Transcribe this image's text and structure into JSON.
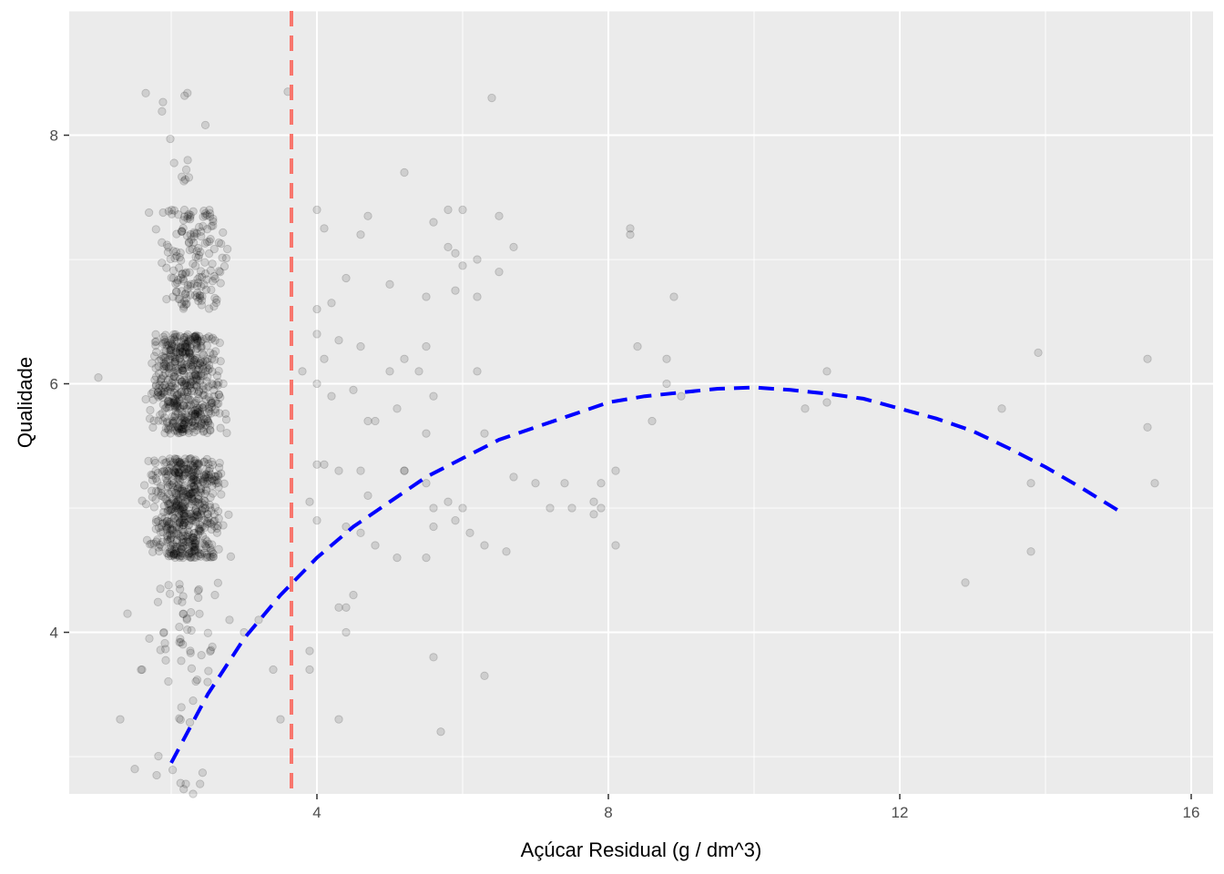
{
  "chart_data": {
    "type": "scatter",
    "title": "",
    "xlabel": "Açúcar Residual (g / dm^3)",
    "ylabel": "Qualidade",
    "xlim": [
      0.6,
      16.3
    ],
    "ylim": [
      2.7,
      9.0
    ],
    "x_ticks": [
      4,
      8,
      12,
      16
    ],
    "x_tick_labels": [
      "4",
      "8",
      "12",
      "16"
    ],
    "y_ticks": [
      4,
      6,
      8
    ],
    "y_tick_labels": [
      "4",
      "6",
      "8"
    ],
    "grid": true,
    "legend": "none",
    "colors": {
      "panel_background": "#ebebeb",
      "grid_line": "#ffffff",
      "points": "#000000",
      "vline": "#f8766d",
      "curve": "#0000ff"
    },
    "points_jitter": 0.4,
    "points_alpha": 0.12,
    "points_dense": [
      {
        "quality": 3,
        "center": 2.1,
        "spread": 0.4,
        "n": 10
      },
      {
        "quality": 4,
        "center": 2.2,
        "spread": 0.5,
        "n": 45
      },
      {
        "quality": 5,
        "center": 2.2,
        "spread": 0.42,
        "n": 560
      },
      {
        "quality": 6,
        "center": 2.2,
        "spread": 0.42,
        "n": 520
      },
      {
        "quality": 7,
        "center": 2.3,
        "spread": 0.45,
        "n": 160
      },
      {
        "quality": 8,
        "center": 2.1,
        "spread": 0.35,
        "n": 14
      }
    ],
    "points_sparse": [
      [
        1.0,
        6.05
      ],
      [
        1.3,
        3.3
      ],
      [
        1.4,
        4.15
      ],
      [
        1.5,
        2.9
      ],
      [
        1.6,
        3.7
      ],
      [
        1.7,
        3.95
      ],
      [
        1.8,
        2.85
      ],
      [
        1.9,
        4.0
      ],
      [
        2.2,
        2.78
      ],
      [
        2.3,
        3.45
      ],
      [
        2.3,
        2.7
      ],
      [
        2.5,
        3.6
      ],
      [
        2.6,
        4.3
      ],
      [
        2.8,
        4.1
      ],
      [
        3.0,
        4.0
      ],
      [
        3.2,
        4.1
      ],
      [
        3.4,
        3.7
      ],
      [
        3.5,
        3.3
      ],
      [
        3.9,
        3.7
      ],
      [
        3.9,
        3.85
      ],
      [
        4.3,
        3.3
      ],
      [
        4.3,
        4.2
      ],
      [
        4.4,
        4.2
      ],
      [
        4.4,
        4.0
      ],
      [
        4.5,
        4.3
      ],
      [
        5.7,
        3.2
      ],
      [
        5.6,
        3.8
      ],
      [
        6.3,
        3.65
      ],
      [
        4.0,
        7.4
      ],
      [
        4.1,
        7.25
      ],
      [
        4.6,
        7.2
      ],
      [
        4.7,
        7.35
      ],
      [
        5.2,
        7.7
      ],
      [
        5.6,
        7.3
      ],
      [
        5.8,
        7.4
      ],
      [
        6.0,
        7.4
      ],
      [
        6.5,
        7.35
      ],
      [
        6.7,
        7.1
      ],
      [
        6.4,
        8.3
      ],
      [
        3.6,
        8.35
      ],
      [
        4.0,
        6.6
      ],
      [
        4.2,
        6.65
      ],
      [
        4.4,
        6.85
      ],
      [
        5.0,
        6.8
      ],
      [
        5.5,
        6.7
      ],
      [
        5.9,
        6.75
      ],
      [
        6.2,
        6.7
      ],
      [
        6.5,
        6.9
      ],
      [
        6.2,
        7.0
      ],
      [
        6.0,
        6.95
      ],
      [
        5.8,
        7.1
      ],
      [
        5.9,
        7.05
      ],
      [
        3.8,
        6.1
      ],
      [
        4.0,
        6.0
      ],
      [
        4.0,
        6.4
      ],
      [
        4.1,
        6.2
      ],
      [
        4.2,
        5.9
      ],
      [
        4.3,
        6.35
      ],
      [
        4.5,
        5.95
      ],
      [
        4.6,
        6.3
      ],
      [
        4.7,
        5.7
      ],
      [
        5.2,
        6.2
      ],
      [
        5.4,
        6.1
      ],
      [
        5.5,
        6.3
      ],
      [
        5.6,
        5.9
      ],
      [
        6.2,
        6.1
      ],
      [
        5.1,
        5.8
      ],
      [
        4.8,
        5.7
      ],
      [
        5.0,
        6.1
      ],
      [
        6.3,
        5.6
      ],
      [
        4.0,
        5.35
      ],
      [
        4.1,
        5.35
      ],
      [
        4.3,
        5.3
      ],
      [
        4.6,
        5.3
      ],
      [
        4.7,
        5.1
      ],
      [
        5.2,
        5.3
      ],
      [
        5.5,
        5.2
      ],
      [
        5.6,
        5.0
      ],
      [
        5.8,
        5.05
      ],
      [
        6.0,
        5.0
      ],
      [
        6.1,
        4.8
      ],
      [
        6.3,
        4.7
      ],
      [
        6.6,
        4.65
      ],
      [
        6.7,
        5.25
      ],
      [
        7.0,
        5.2
      ],
      [
        7.2,
        5.0
      ],
      [
        7.5,
        5.0
      ],
      [
        7.8,
        5.05
      ],
      [
        7.8,
        4.95
      ],
      [
        7.9,
        5.0
      ],
      [
        7.9,
        5.2
      ],
      [
        8.1,
        5.3
      ],
      [
        8.1,
        4.7
      ],
      [
        7.4,
        5.2
      ],
      [
        4.4,
        4.85
      ],
      [
        4.6,
        4.8
      ],
      [
        4.8,
        4.7
      ],
      [
        5.1,
        4.6
      ],
      [
        5.6,
        4.85
      ],
      [
        5.9,
        4.9
      ],
      [
        5.2,
        5.3
      ],
      [
        5.5,
        5.6
      ],
      [
        5.5,
        4.6
      ],
      [
        4.0,
        4.9
      ],
      [
        3.9,
        5.05
      ],
      [
        8.3,
        7.25
      ],
      [
        8.3,
        7.2
      ],
      [
        8.9,
        6.7
      ],
      [
        8.8,
        6.2
      ],
      [
        8.4,
        6.3
      ],
      [
        8.8,
        6.0
      ],
      [
        9.0,
        5.9
      ],
      [
        8.6,
        5.7
      ],
      [
        10.7,
        5.8
      ],
      [
        11.0,
        5.85
      ],
      [
        11.0,
        6.1
      ],
      [
        12.9,
        4.4
      ],
      [
        13.4,
        5.8
      ],
      [
        13.8,
        5.2
      ],
      [
        13.8,
        4.65
      ],
      [
        13.9,
        6.25
      ],
      [
        15.4,
        6.2
      ],
      [
        15.4,
        5.65
      ],
      [
        15.5,
        5.2
      ]
    ],
    "vline": {
      "x": 3.65,
      "style": "dashed"
    },
    "curve": {
      "style": "dashed",
      "x": [
        2.0,
        2.5,
        3.0,
        3.5,
        4.0,
        4.5,
        5.0,
        5.5,
        6.0,
        6.5,
        7.0,
        7.5,
        8.0,
        8.5,
        9.0,
        9.5,
        10.0,
        10.5,
        11.0,
        11.5,
        12.0,
        12.5,
        13.0,
        13.5,
        14.0,
        14.5,
        15.0
      ],
      "y": [
        2.95,
        3.5,
        3.95,
        4.3,
        4.6,
        4.85,
        5.05,
        5.25,
        5.4,
        5.55,
        5.65,
        5.75,
        5.85,
        5.9,
        5.93,
        5.96,
        5.97,
        5.95,
        5.92,
        5.88,
        5.8,
        5.72,
        5.62,
        5.48,
        5.33,
        5.16,
        4.98
      ]
    }
  }
}
